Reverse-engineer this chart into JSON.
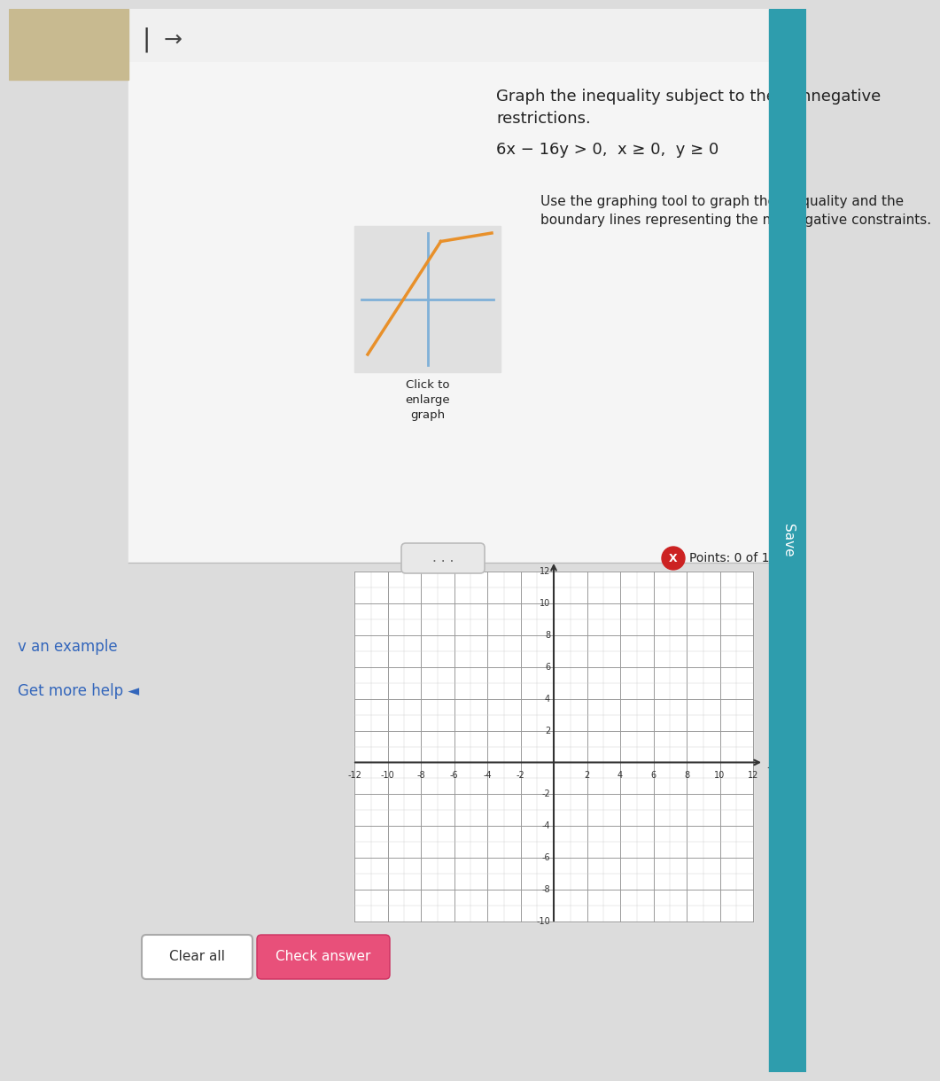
{
  "bg_color": "#dcdcdc",
  "white_panel_bg": "#f5f5f5",
  "teal_sidebar_color": "#2E9DAD",
  "title_text": "Graph the inequality subject to the nonnegative\nrestrictions.",
  "inequality_text": "6x − 16y > 0,  x ≥ 0,  y ≥ 0",
  "instruction_text": "Use the graphing tool to graph the inequality and the\nboundary lines representing the nonnegative constraints.",
  "click_text": "Click to\nenlarge\ngraph",
  "points_text": "Points: 0 of 1",
  "example_text": "v an example",
  "get_more_help_text": "Get more help ◄",
  "save_text": "Save",
  "check_answer_text": "Check answer",
  "clear_all_text": "Clear all",
  "xmin": -12,
  "xmax": 12,
  "ymin": -10,
  "ymax": 12,
  "xtick_step": 2,
  "ytick_step": 2,
  "grid_color": "#aaaaaa",
  "axis_color": "#333333",
  "thumbnail_line1_color": "#7fb0d8",
  "thumbnail_line2_color": "#e8902a",
  "thumbnail_bg": "#e0e0e0",
  "k_symbol": "|",
  "arrow_right": "→",
  "dots_color": "#888888",
  "pink_btn_color": "#e8507a",
  "blue_text_color": "#3366bb",
  "tan_box_color": "#c8ba90",
  "separator_color": "#bbbbbb",
  "nav_bg": "#f0f0f0"
}
